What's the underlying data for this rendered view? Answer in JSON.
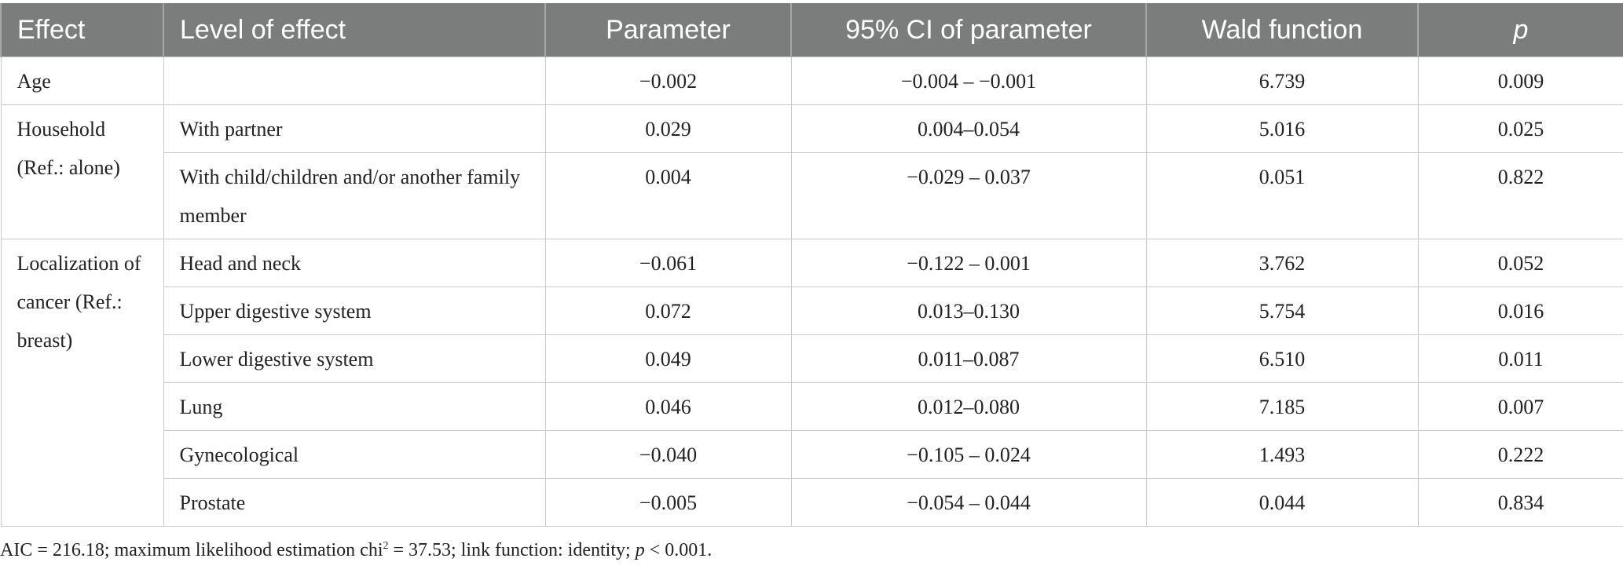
{
  "table": {
    "headers": [
      "Effect",
      "Level of effect",
      "Parameter",
      "95% CI of parameter",
      "Wald function",
      "p"
    ],
    "rows": [
      {
        "effect": "Age",
        "level": "",
        "parameter": "−0.002",
        "ci": "−0.004 – −0.001",
        "wald": "6.739",
        "p": "0.009"
      },
      {
        "effect": "Household (Ref.: alone)",
        "level": "With partner",
        "parameter": "0.029",
        "ci": "0.004–0.054",
        "wald": "5.016",
        "p": "0.025"
      },
      {
        "effect": "",
        "level": "With child/children and/or another family member",
        "parameter": "0.004",
        "ci": "−0.029 – 0.037",
        "wald": "0.051",
        "p": "0.822"
      },
      {
        "effect": "Localization of cancer (Ref.: breast)",
        "level": "Head and neck",
        "parameter": "−0.061",
        "ci": "−0.122 – 0.001",
        "wald": "3.762",
        "p": "0.052"
      },
      {
        "effect": "",
        "level": "Upper digestive system",
        "parameter": "0.072",
        "ci": "0.013–0.130",
        "wald": "5.754",
        "p": "0.016"
      },
      {
        "effect": "",
        "level": "Lower digestive system",
        "parameter": "0.049",
        "ci": "0.011–0.087",
        "wald": "6.510",
        "p": "0.011"
      },
      {
        "effect": "",
        "level": "Lung",
        "parameter": "0.046",
        "ci": "0.012–0.080",
        "wald": "7.185",
        "p": "0.007"
      },
      {
        "effect": "",
        "level": "Gynecological",
        "parameter": "−0.040",
        "ci": "−0.105 – 0.024",
        "wald": "1.493",
        "p": "0.222"
      },
      {
        "effect": "",
        "level": "Prostate",
        "parameter": "−0.005",
        "ci": "−0.054 – 0.044",
        "wald": "0.044",
        "p": "0.834"
      }
    ]
  },
  "footnote": {
    "part1": "AIC = 216.18; maximum likelihood estimation chi",
    "sup": "2",
    "part2": " = 37.53; link function: identity; ",
    "p_symbol": "p",
    "part3": " < 0.001."
  },
  "colors": {
    "header_bg": "#7b7c7c",
    "header_text": "#ffffff",
    "grid_line": "#c9c9c9",
    "body_text": "#222222"
  }
}
